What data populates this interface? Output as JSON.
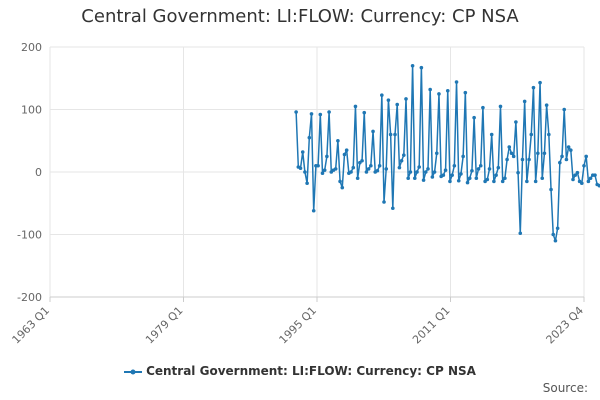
{
  "chart_data": {
    "type": "line",
    "title": "Central Government: LI:FLOW: Currency: CP NSA",
    "xlabel": "",
    "ylabel": "",
    "ylim": [
      -200,
      200
    ],
    "yticks": [
      200,
      100,
      0,
      -100,
      -200
    ],
    "xticks": [
      "1963 Q1",
      "1979 Q1",
      "1995 Q1",
      "2011 Q1",
      "2023 Q4"
    ],
    "xrange_quarters": [
      0,
      243
    ],
    "series": [
      {
        "name": "Central Government: LI:FLOW: Currency: CP NSA",
        "color": "#1f77b4",
        "start_quarter_index": 112,
        "values": [
          96,
          8,
          6,
          32,
          0,
          -18,
          55,
          93,
          -62,
          10,
          10,
          92,
          -2,
          3,
          25,
          96,
          0,
          3,
          5,
          50,
          -15,
          -25,
          28,
          35,
          -2,
          0,
          7,
          105,
          -10,
          15,
          18,
          95,
          0,
          5,
          10,
          65,
          0,
          2,
          10,
          123,
          -48,
          5,
          115,
          60,
          -58,
          60,
          108,
          7,
          18,
          27,
          117,
          -10,
          0,
          170,
          -10,
          0,
          8,
          167,
          -13,
          0,
          5,
          132,
          -8,
          0,
          30,
          125,
          -7,
          -5,
          3,
          130,
          -15,
          -5,
          10,
          144,
          -14,
          -3,
          25,
          127,
          -17,
          -10,
          2,
          87,
          -10,
          5,
          10,
          103,
          -15,
          -12,
          5,
          60,
          -15,
          -5,
          7,
          105,
          -15,
          -10,
          20,
          40,
          30,
          25,
          80,
          -1,
          -98,
          20,
          113,
          -15,
          20,
          60,
          135,
          -15,
          30,
          143,
          -10,
          30,
          107,
          60,
          -28,
          -100,
          -110,
          -90,
          15,
          25,
          100,
          20,
          40,
          35,
          -12,
          -5,
          -1,
          -15,
          -18,
          10,
          25,
          -15,
          -10,
          -5,
          -5,
          -20,
          -22,
          -18,
          -15
        ]
      }
    ]
  },
  "legend": {
    "label": "Central Government: LI:FLOW: Currency: CP NSA"
  },
  "footer": {
    "source": "Source:"
  }
}
